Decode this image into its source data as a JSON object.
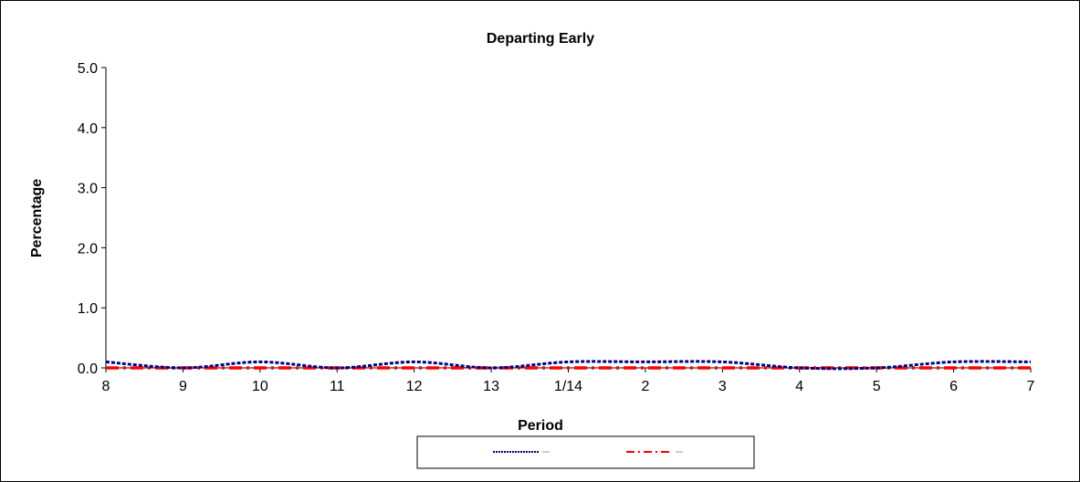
{
  "chart_data": {
    "type": "line",
    "title": "Departing Early",
    "xlabel": "Period",
    "ylabel": "Percentage",
    "categories": [
      "8",
      "9",
      "10",
      "11",
      "12",
      "13",
      "1/14",
      "2",
      "3",
      "4",
      "5",
      "6",
      "7"
    ],
    "ylim": [
      0,
      5
    ],
    "yticks": [
      "0.0",
      "1.0",
      "2.0",
      "3.0",
      "4.0",
      "5.0"
    ],
    "grid": false,
    "legend_position": "bottom",
    "series": [
      {
        "values": [
          0.1,
          0.0,
          0.1,
          0.0,
          0.1,
          0.0,
          0.1,
          0.1,
          0.1,
          0.0,
          0.0,
          0.1,
          0.1
        ],
        "color": "#000080",
        "dash": "dotted"
      },
      {
        "values": [
          0.0,
          0.0,
          0.0,
          0.0,
          0.0,
          0.0,
          0.0,
          0.0,
          0.0,
          0.0,
          0.0,
          0.0,
          0.0
        ],
        "color": "#ff0000",
        "dash": "dash-dot"
      }
    ]
  }
}
